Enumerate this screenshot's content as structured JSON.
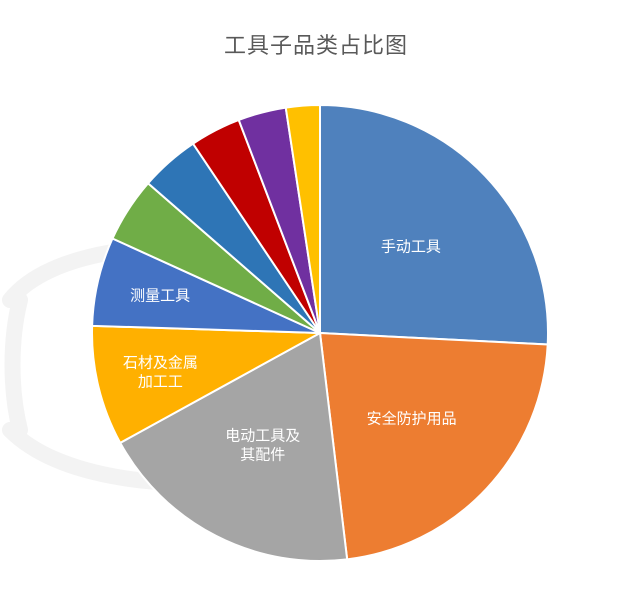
{
  "chart_data": {
    "type": "pie",
    "title": "工具子品类占比图",
    "labels": [
      "手动工具",
      "安全防护用品",
      "电动工具及其配件",
      "石材及金属加工工",
      "测量工具",
      "",
      "",
      "",
      "",
      ""
    ],
    "values": [
      25.8,
      22.3,
      18.9,
      8.5,
      6.3,
      4.6,
      4.2,
      3.6,
      3.4,
      2.4
    ],
    "colors": [
      "#4F81BD",
      "#ED7D31",
      "#A5A5A5",
      "#FFB000",
      "#4472C4",
      "#70AD47",
      "#2E75B6",
      "#C00000",
      "#7030A0",
      "#FFC000"
    ],
    "legend": "none",
    "direction": "clockwise",
    "start": "top"
  }
}
